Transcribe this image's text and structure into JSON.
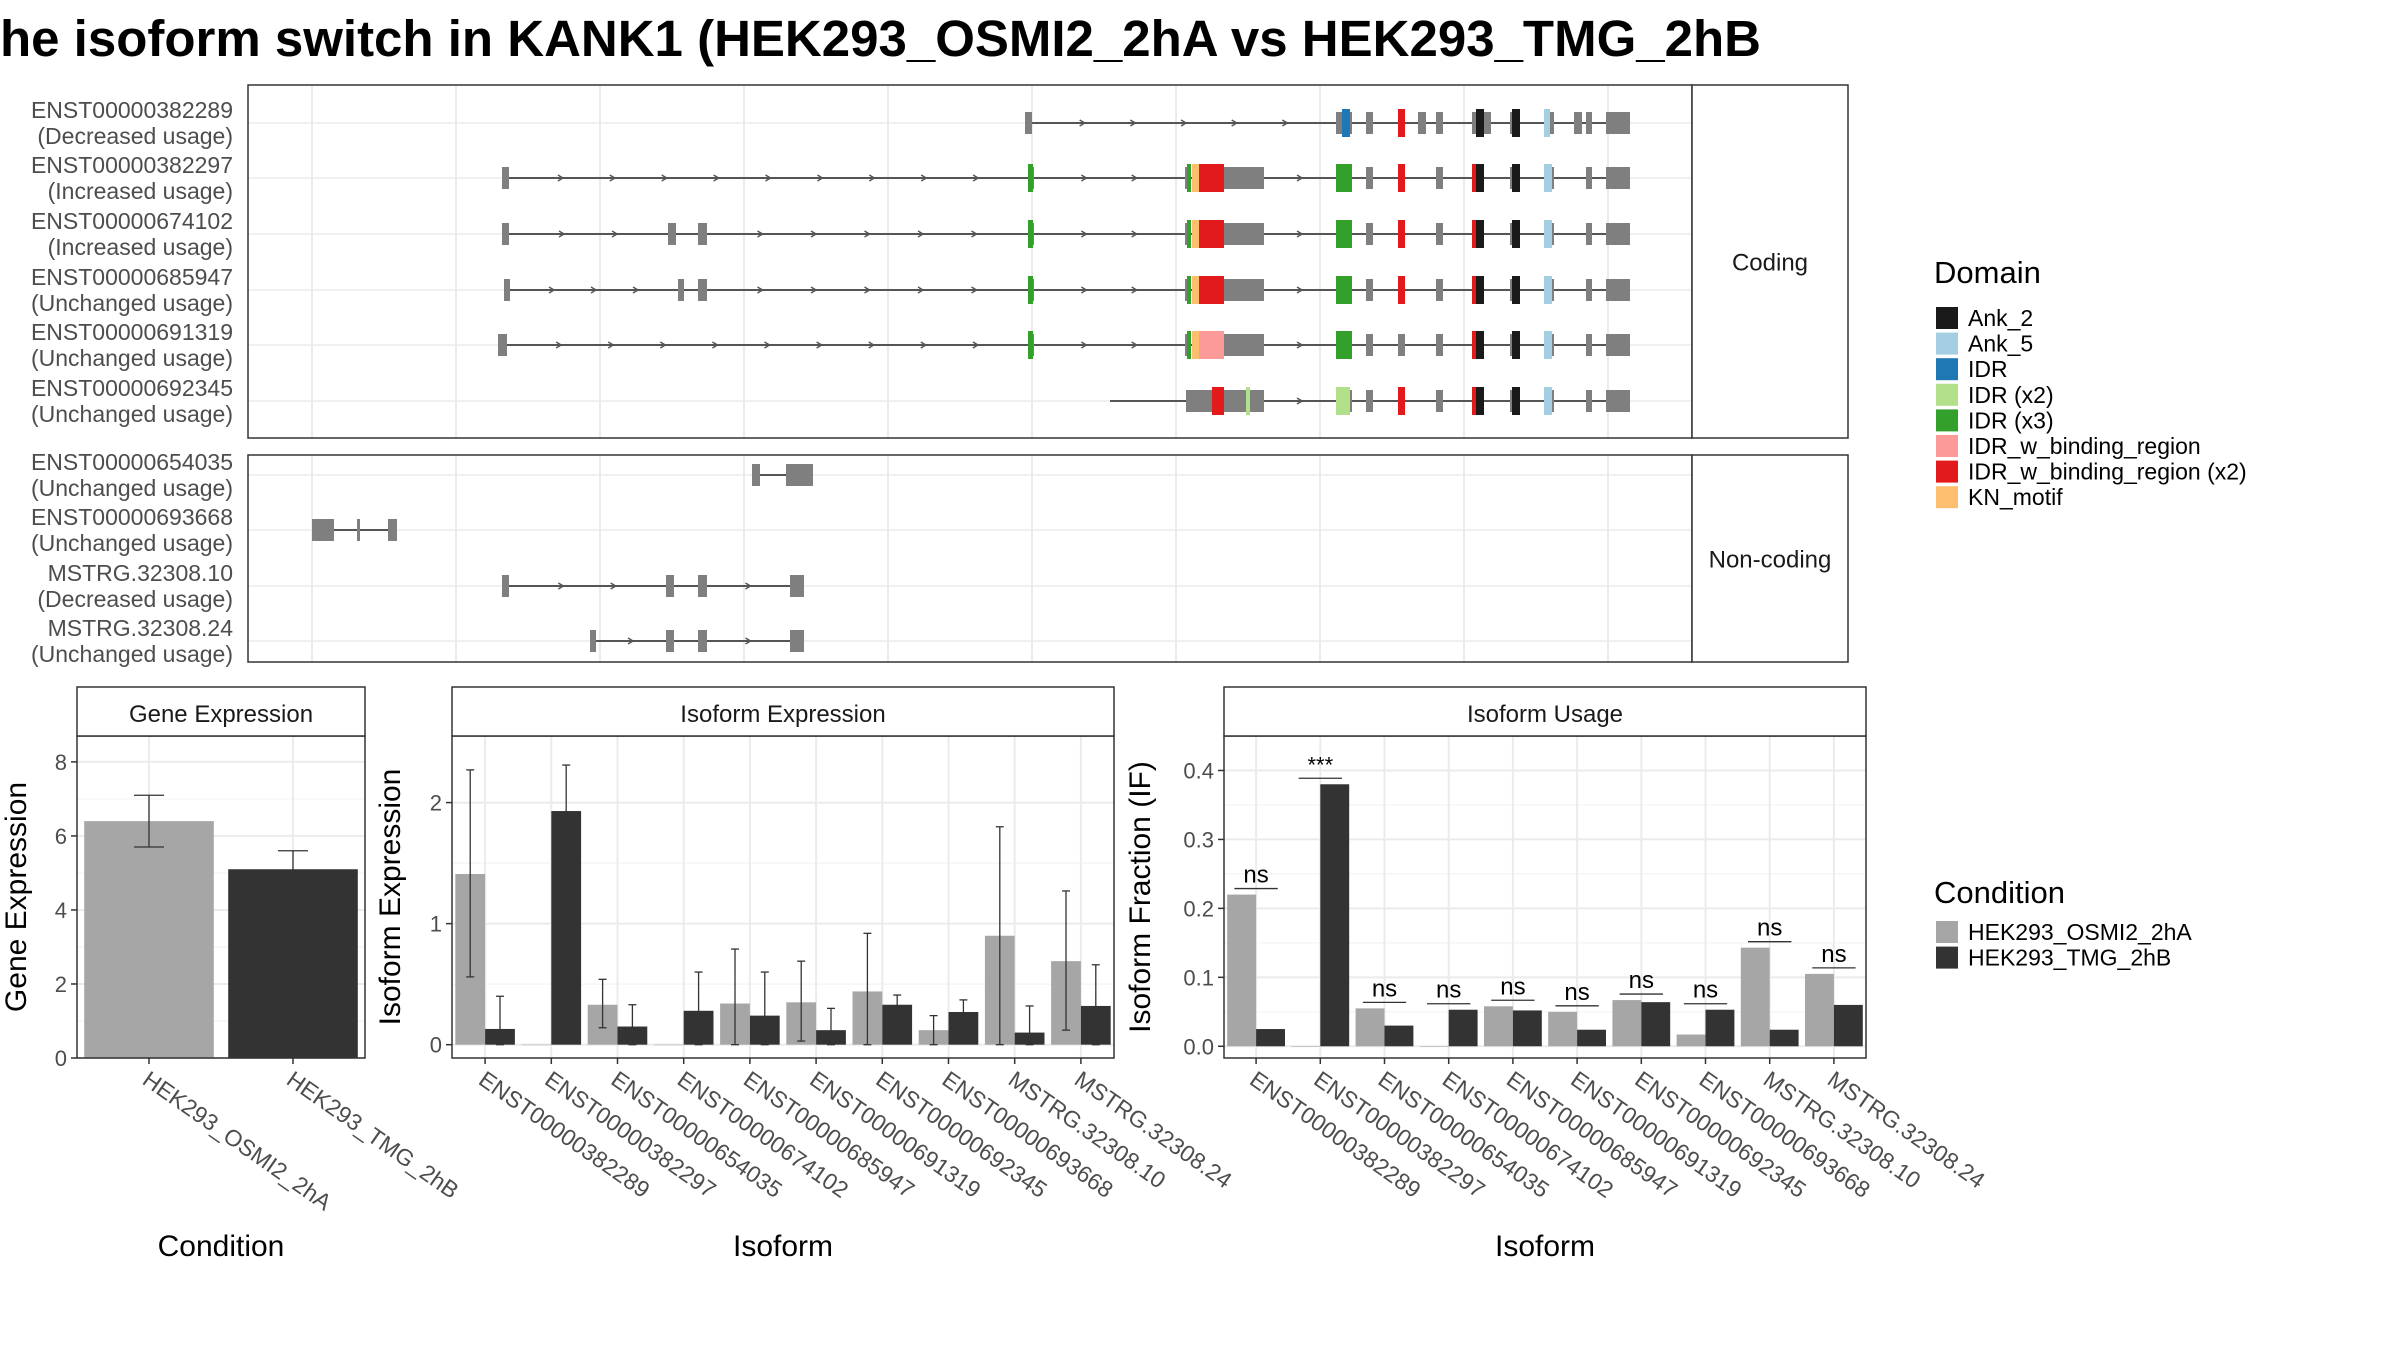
{
  "title": "he isoform switch in KANK1 (HEK293_OSMI2_2hA vs HEK293_TMG_2hB",
  "colors": {
    "cond_a": "#a6a6a6",
    "cond_b": "#333333",
    "exon": "#7f7f7f",
    "intron": "#555555",
    "grid": "#ebebeb",
    "domain_colors": [
      "#1a1a1a",
      "#a6cee3",
      "#1f78b4",
      "#b2df8a",
      "#33a02c",
      "#fb9a99",
      "#e31a1c",
      "#fdbf6f"
    ]
  },
  "structure": {
    "facets": [
      "Coding",
      "Non-coding"
    ],
    "coding_isoforms": [
      {
        "id": "ENST00000382289",
        "usage": "(Decreased usage)"
      },
      {
        "id": "ENST00000382297",
        "usage": "(Increased usage)"
      },
      {
        "id": "ENST00000674102",
        "usage": "(Increased usage)"
      },
      {
        "id": "ENST00000685947",
        "usage": "(Unchanged usage)"
      },
      {
        "id": "ENST00000691319",
        "usage": "(Unchanged usage)"
      },
      {
        "id": "ENST00000692345",
        "usage": "(Unchanged usage)"
      }
    ],
    "noncoding_isoforms": [
      {
        "id": "ENST00000654035",
        "usage": "(Unchanged usage)"
      },
      {
        "id": "ENST00000693668",
        "usage": "(Unchanged usage)"
      },
      {
        "id": "MSTRG.32308.10",
        "usage": "(Decreased usage)"
      },
      {
        "id": "MSTRG.32308.24",
        "usage": "(Unchanged usage)"
      }
    ]
  },
  "legend_domain": {
    "title": "Domain",
    "entries": [
      "Ank_2",
      "Ank_5",
      "IDR",
      "IDR (x2)",
      "IDR (x3)",
      "IDR_w_binding_region",
      "IDR_w_binding_region (x2)",
      "KN_motif"
    ]
  },
  "legend_condition": {
    "title": "Condition",
    "entries": [
      "HEK293_OSMI2_2hA",
      "HEK293_TMG_2hB"
    ]
  },
  "chart_data": [
    {
      "type": "bar",
      "title": "Gene Expression",
      "xlabel": "Condition",
      "ylabel": "Gene Expression",
      "categories": [
        "HEK293_OSMI2_2hA",
        "HEK293_TMG_2hB"
      ],
      "values": [
        6.4,
        5.1
      ],
      "error_low": [
        5.7,
        4.6
      ],
      "error_high": [
        7.1,
        5.6
      ],
      "ylim": [
        0,
        8.7
      ],
      "yticks": [
        0,
        2,
        4,
        6,
        8
      ]
    },
    {
      "type": "bar",
      "title": "Isoform Expression",
      "xlabel": "Isoform",
      "ylabel": "Isoform Expression",
      "categories": [
        "ENST00000382289",
        "ENST00000382297",
        "ENST00000654035",
        "ENST00000674102",
        "ENST00000685947",
        "ENST00000691319",
        "ENST00000692345",
        "ENST00000693668",
        "MSTRG.32308.10",
        "MSTRG.32308.24"
      ],
      "series": [
        {
          "name": "HEK293_OSMI2_2hA",
          "values": [
            1.41,
            0.0,
            0.33,
            0.0,
            0.34,
            0.35,
            0.44,
            0.12,
            0.9,
            0.69
          ]
        },
        {
          "name": "HEK293_TMG_2hB",
          "values": [
            0.13,
            1.93,
            0.15,
            0.28,
            0.24,
            0.12,
            0.33,
            0.27,
            0.1,
            0.32
          ]
        }
      ],
      "errors": [
        {
          "low": [
            0.56,
            0.0,
            0.14,
            0.0,
            0.0,
            0.03,
            0.0,
            0.0,
            0.0,
            0.12
          ],
          "high": [
            2.27,
            0.0,
            0.54,
            0.0,
            0.79,
            0.69,
            0.92,
            0.24,
            1.8,
            1.27
          ]
        },
        {
          "low": [
            0.0,
            1.55,
            0.0,
            0.0,
            0.0,
            0.0,
            0.26,
            0.15,
            0.0,
            0.0
          ],
          "high": [
            0.4,
            2.31,
            0.33,
            0.6,
            0.6,
            0.3,
            0.41,
            0.37,
            0.32,
            0.66
          ]
        }
      ],
      "ylim": [
        -0.11,
        2.55
      ],
      "yticks": [
        0,
        1,
        2
      ]
    },
    {
      "type": "bar",
      "title": "Isoform Usage",
      "xlabel": "Isoform",
      "ylabel": "Isoform Fraction (IF)",
      "categories": [
        "ENST00000382289",
        "ENST00000382297",
        "ENST00000654035",
        "ENST00000674102",
        "ENST00000685947",
        "ENST00000691319",
        "ENST00000692345",
        "ENST00000693668",
        "MSTRG.32308.10",
        "MSTRG.32308.24"
      ],
      "series": [
        {
          "name": "HEK293_OSMI2_2hA",
          "values": [
            0.22,
            0.0,
            0.055,
            0.0,
            0.058,
            0.05,
            0.067,
            0.017,
            0.143,
            0.105
          ]
        },
        {
          "name": "HEK293_TMG_2hB",
          "values": [
            0.025,
            0.38,
            0.03,
            0.053,
            0.052,
            0.024,
            0.064,
            0.053,
            0.024,
            0.06
          ]
        }
      ],
      "significance": [
        "ns",
        "***",
        "ns",
        "ns",
        "ns",
        "ns",
        "ns",
        "ns",
        "ns",
        "ns"
      ],
      "ylim": [
        -0.017,
        0.45
      ],
      "yticks": [
        0.0,
        0.1,
        0.2,
        0.3,
        0.4
      ],
      "ytick_labels": [
        "0.0",
        "0.1",
        "0.2",
        "0.3",
        "0.4"
      ]
    }
  ]
}
